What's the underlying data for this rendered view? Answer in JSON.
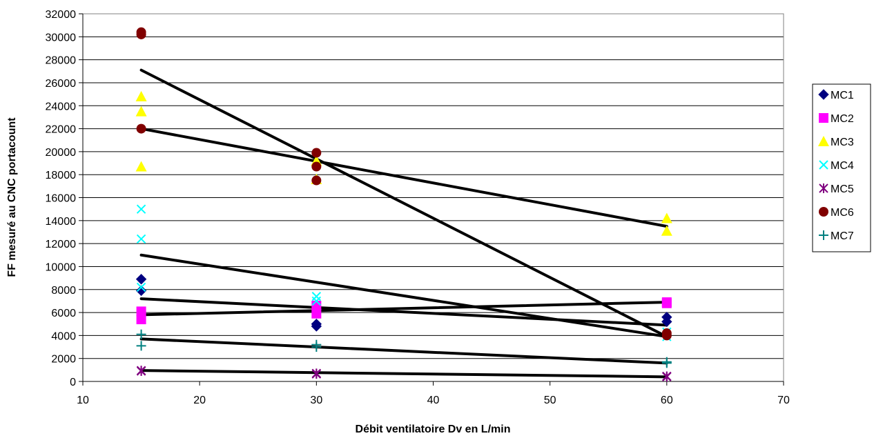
{
  "chart_data": {
    "type": "scatter",
    "title": "",
    "xlabel": "Débit ventilatoire Dv en L/min",
    "ylabel": "FF mesuré au CNC portacount",
    "xlim": [
      10,
      70
    ],
    "ylim": [
      0,
      32000
    ],
    "x_ticks": [
      10,
      20,
      30,
      40,
      50,
      60,
      70
    ],
    "y_ticks": [
      0,
      2000,
      4000,
      6000,
      8000,
      10000,
      12000,
      14000,
      16000,
      18000,
      20000,
      22000,
      24000,
      26000,
      28000,
      30000,
      32000
    ],
    "grid": {
      "horizontal": true,
      "vertical": false
    },
    "legend_position": "right",
    "series": [
      {
        "name": "MC1",
        "marker": "diamond",
        "color": "#000080",
        "points": [
          [
            15,
            8900
          ],
          [
            15,
            7900
          ],
          [
            30,
            5000
          ],
          [
            30,
            4800
          ],
          [
            60,
            5600
          ],
          [
            60,
            5200
          ]
        ]
      },
      {
        "name": "MC2",
        "marker": "square",
        "color": "#FF00FF",
        "points": [
          [
            15,
            6100
          ],
          [
            15,
            5400
          ],
          [
            30,
            6600
          ],
          [
            30,
            5900
          ],
          [
            60,
            6900
          ],
          [
            60,
            6800
          ]
        ]
      },
      {
        "name": "MC3",
        "marker": "triangle",
        "color": "#FFFF00",
        "points": [
          [
            15,
            24800
          ],
          [
            15,
            23500
          ],
          [
            15,
            18700
          ],
          [
            30,
            19200
          ],
          [
            30,
            17600
          ],
          [
            60,
            14200
          ],
          [
            60,
            13100
          ]
        ]
      },
      {
        "name": "MC4",
        "marker": "x",
        "color": "#00FFFF",
        "points": [
          [
            15,
            15000
          ],
          [
            15,
            12400
          ],
          [
            15,
            8200
          ],
          [
            30,
            7400
          ],
          [
            30,
            7000
          ],
          [
            60,
            4300
          ],
          [
            60,
            3900
          ]
        ]
      },
      {
        "name": "MC5",
        "marker": "star",
        "color": "#800080",
        "points": [
          [
            15,
            950
          ],
          [
            15,
            900
          ],
          [
            30,
            700
          ],
          [
            30,
            650
          ],
          [
            60,
            450
          ],
          [
            60,
            400
          ]
        ]
      },
      {
        "name": "MC6",
        "marker": "circle",
        "color": "#800000",
        "points": [
          [
            15,
            30400
          ],
          [
            15,
            30200
          ],
          [
            15,
            22000
          ],
          [
            30,
            19900
          ],
          [
            30,
            18700
          ],
          [
            30,
            17500
          ],
          [
            60,
            4200
          ],
          [
            60,
            4000
          ]
        ]
      },
      {
        "name": "MC7",
        "marker": "plus",
        "color": "#008080",
        "points": [
          [
            15,
            4100
          ],
          [
            15,
            3100
          ],
          [
            30,
            3200
          ],
          [
            30,
            3000
          ],
          [
            60,
            1700
          ],
          [
            60,
            1600
          ]
        ]
      }
    ],
    "trendlines": [
      {
        "color": "#000000",
        "from": [
          15,
          27100
        ],
        "to": [
          60,
          3900
        ]
      },
      {
        "color": "#000000",
        "from": [
          15,
          22000
        ],
        "to": [
          60,
          13500
        ]
      },
      {
        "color": "#000000",
        "from": [
          15,
          11000
        ],
        "to": [
          60,
          3900
        ]
      },
      {
        "color": "#000000",
        "from": [
          15,
          7200
        ],
        "to": [
          60,
          4900
        ]
      },
      {
        "color": "#000000",
        "from": [
          15,
          5800
        ],
        "to": [
          60,
          6900
        ]
      },
      {
        "color": "#000000",
        "from": [
          15,
          3700
        ],
        "to": [
          60,
          1600
        ]
      },
      {
        "color": "#000000",
        "from": [
          15,
          950
        ],
        "to": [
          60,
          400
        ]
      }
    ]
  }
}
